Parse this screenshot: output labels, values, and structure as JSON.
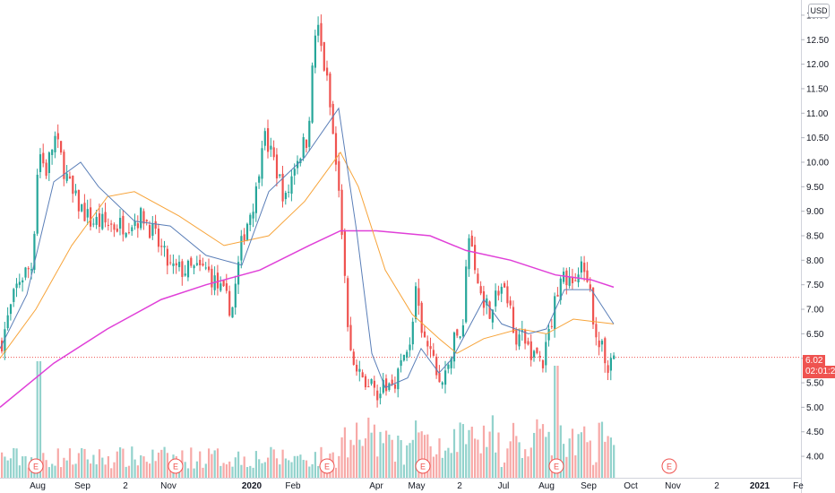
{
  "currency": "USD",
  "last_price_label": "6.02",
  "countdown": "02:01:25",
  "colors": {
    "up": "#26a69a",
    "down": "#ef5350",
    "ma_fast": "#5b7fb8",
    "ma_mid": "#f7a43a",
    "ma_slow": "#e040d8",
    "price_line": "#ef5350",
    "earnings": "#ef5350"
  },
  "y_axis": {
    "ticks": [
      "4.00",
      "4.50",
      "5.00",
      "5.50",
      "6.00",
      "6.50",
      "7.00",
      "7.50",
      "8.00",
      "8.50",
      "9.00",
      "9.50",
      "10.00",
      "10.50",
      "11.00",
      "11.50",
      "12.00",
      "12.50",
      "13.00"
    ]
  },
  "x_axis": {
    "ticks": [
      "Aug",
      "Sep",
      "2",
      "Nov",
      "2020",
      "Feb",
      "Apr",
      "May",
      "2",
      "Jul",
      "Aug",
      "Sep",
      "Oct",
      "Nov",
      "2",
      "2021",
      "Fe"
    ]
  },
  "earnings_marker": "E",
  "chart_data": {
    "type": "candlestick",
    "ylim": [
      3.8,
      13.2
    ],
    "last_price": 6.02,
    "price_anchors": [
      [
        0,
        6.3
      ],
      [
        20,
        7.6
      ],
      [
        35,
        7.9
      ],
      [
        42,
        10.3
      ],
      [
        50,
        9.8
      ],
      [
        60,
        10.5
      ],
      [
        80,
        9.3
      ],
      [
        100,
        8.8
      ],
      [
        130,
        8.7
      ],
      [
        160,
        8.9
      ],
      [
        190,
        7.8
      ],
      [
        230,
        7.8
      ],
      [
        258,
        7.0
      ],
      [
        270,
        8.5
      ],
      [
        285,
        9.4
      ],
      [
        292,
        10.6
      ],
      [
        305,
        10.0
      ],
      [
        318,
        9.2
      ],
      [
        328,
        10.0
      ],
      [
        342,
        10.5
      ],
      [
        352,
        12.9
      ],
      [
        365,
        11.5
      ],
      [
        372,
        10.3
      ],
      [
        380,
        8.8
      ],
      [
        388,
        6.3
      ],
      [
        398,
        5.6
      ],
      [
        410,
        5.5
      ],
      [
        425,
        5.3
      ],
      [
        440,
        5.6
      ],
      [
        455,
        6.2
      ],
      [
        463,
        7.3
      ],
      [
        470,
        6.4
      ],
      [
        480,
        6.1
      ],
      [
        492,
        5.4
      ],
      [
        505,
        6.3
      ],
      [
        515,
        6.6
      ],
      [
        522,
        8.6
      ],
      [
        530,
        7.6
      ],
      [
        545,
        7.0
      ],
      [
        560,
        7.5
      ],
      [
        575,
        6.5
      ],
      [
        590,
        6.2
      ],
      [
        605,
        5.9
      ],
      [
        615,
        6.8
      ],
      [
        625,
        7.8
      ],
      [
        635,
        7.5
      ],
      [
        648,
        7.8
      ],
      [
        658,
        7.2
      ],
      [
        667,
        6.3
      ],
      [
        677,
        5.9
      ],
      [
        686,
        6.1
      ]
    ],
    "ma_fast": [
      [
        0,
        6.2
      ],
      [
        30,
        7.3
      ],
      [
        60,
        9.6
      ],
      [
        90,
        10.0
      ],
      [
        110,
        9.5
      ],
      [
        150,
        8.8
      ],
      [
        190,
        8.7
      ],
      [
        230,
        8.1
      ],
      [
        270,
        7.9
      ],
      [
        300,
        9.4
      ],
      [
        340,
        10.1
      ],
      [
        378,
        11.1
      ],
      [
        398,
        8.6
      ],
      [
        415,
        6.1
      ],
      [
        430,
        5.4
      ],
      [
        455,
        5.6
      ],
      [
        470,
        6.2
      ],
      [
        490,
        5.7
      ],
      [
        505,
        6.0
      ],
      [
        540,
        7.2
      ],
      [
        560,
        6.7
      ],
      [
        590,
        6.5
      ],
      [
        610,
        6.6
      ],
      [
        630,
        7.4
      ],
      [
        660,
        7.4
      ],
      [
        685,
        6.7
      ]
    ],
    "ma_mid": [
      [
        0,
        6.0
      ],
      [
        40,
        7.0
      ],
      [
        80,
        8.3
      ],
      [
        120,
        9.3
      ],
      [
        150,
        9.4
      ],
      [
        200,
        8.9
      ],
      [
        250,
        8.3
      ],
      [
        300,
        8.5
      ],
      [
        340,
        9.2
      ],
      [
        380,
        10.2
      ],
      [
        400,
        9.5
      ],
      [
        430,
        7.8
      ],
      [
        460,
        6.9
      ],
      [
        490,
        6.4
      ],
      [
        510,
        6.1
      ],
      [
        540,
        6.4
      ],
      [
        580,
        6.6
      ],
      [
        610,
        6.5
      ],
      [
        640,
        6.8
      ],
      [
        685,
        6.7
      ]
    ],
    "ma_slow": [
      [
        0,
        5.0
      ],
      [
        60,
        5.9
      ],
      [
        120,
        6.6
      ],
      [
        180,
        7.2
      ],
      [
        230,
        7.5
      ],
      [
        290,
        7.8
      ],
      [
        345,
        8.3
      ],
      [
        380,
        8.6
      ],
      [
        420,
        8.6
      ],
      [
        480,
        8.5
      ],
      [
        520,
        8.2
      ],
      [
        570,
        8.0
      ],
      [
        620,
        7.7
      ],
      [
        660,
        7.6
      ],
      [
        685,
        7.45
      ]
    ],
    "earnings_at": [
      40,
      196,
      365,
      472,
      621,
      747
    ]
  }
}
